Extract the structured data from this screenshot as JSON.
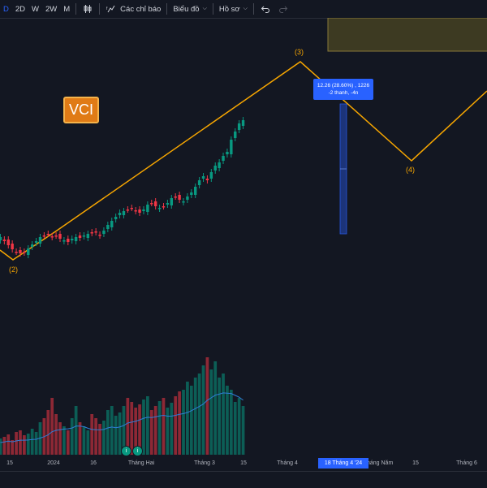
{
  "toolbar": {
    "interval_1": "D",
    "interval_2": "2D",
    "interval_3": "W",
    "interval_4": "2W",
    "interval_5": "M",
    "indicators_label": "Các chỉ báo",
    "chart_label": "Biểu đồ",
    "profile_label": "Hồ sơ"
  },
  "ticker": "VCI",
  "measure": {
    "line1": "12.26 (28.60%) , 1226",
    "line2": "-2 thanh, -4n"
  },
  "waves": {
    "w2": "(2)",
    "w3": "(3)",
    "w4": "(4)"
  },
  "time_axis": {
    "labels": [
      "15",
      "2024",
      "16",
      "Tháng Hai",
      "Tháng 3",
      "15",
      "Tháng 4",
      "4",
      "Tháng Năm",
      "15",
      "Tháng 6"
    ],
    "highlight": "18 Tháng 4 '24"
  },
  "events": [
    "i",
    "i"
  ],
  "colors": {
    "up": "#089981",
    "down": "#f23645",
    "wave": "#f7a600",
    "accent": "#2962ff"
  }
}
